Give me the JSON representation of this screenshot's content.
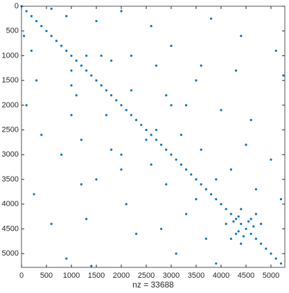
{
  "chart_data": {
    "type": "spy",
    "xlabel": "nz = 33688",
    "color": "#0072bd",
    "xlim": [
      0,
      5278
    ],
    "ylim": [
      0,
      5278
    ],
    "y_reversed": true,
    "xticks": [
      0,
      500,
      1000,
      1500,
      2000,
      2500,
      3000,
      3500,
      4000,
      4500,
      5000
    ],
    "yticks": [
      0,
      500,
      1000,
      1500,
      2000,
      2500,
      3000,
      3500,
      4000,
      4500,
      5000
    ],
    "x": [
      0,
      100,
      200,
      300,
      400,
      500,
      600,
      700,
      800,
      900,
      1000,
      1100,
      1200,
      1300,
      1400,
      1500,
      1600,
      1700,
      1800,
      1900,
      2000,
      2100,
      2200,
      2300,
      2400,
      2500,
      2600,
      2700,
      2800,
      2900,
      3000,
      3100,
      3200,
      3300,
      3400,
      3500,
      3600,
      3700,
      3800,
      3900,
      4000,
      4100,
      4200,
      4300,
      4400,
      4500,
      4600,
      4700,
      4800,
      4900,
      5000,
      5100,
      5200,
      50,
      600,
      200,
      900,
      300,
      1500,
      100,
      2000,
      400,
      2600,
      800,
      3000,
      1000,
      1300,
      1100,
      1800,
      1200,
      2700,
      1300,
      4300,
      1500,
      3500,
      1700,
      2200,
      1800,
      2900,
      2000,
      3300,
      2100,
      4000,
      2300,
      4600,
      2500,
      2700,
      2600,
      3200,
      2800,
      4500,
      2900,
      3600,
      3100,
      5000,
      3300,
      4200,
      3500,
      3900,
      3700,
      4700,
      3900,
      5200,
      4100,
      4400,
      4200,
      4700,
      4300,
      4600,
      4400,
      4800,
      4250,
      4350,
      4350,
      4550,
      4450,
      4650,
      600,
      4400,
      900,
      5100,
      250,
      3800,
      1000,
      1600,
      1400,
      5250,
      1000,
      2200,
      2000,
      3000,
      1200,
      3600
    ],
    "y": [
      0,
      100,
      200,
      300,
      400,
      500,
      600,
      700,
      800,
      900,
      1000,
      1100,
      1200,
      1300,
      1400,
      1500,
      1600,
      1700,
      1800,
      1900,
      2000,
      2100,
      2200,
      2300,
      2400,
      2500,
      2600,
      2700,
      2800,
      2900,
      3000,
      3100,
      3200,
      3300,
      3400,
      3500,
      3600,
      3700,
      3800,
      3900,
      4000,
      4100,
      4200,
      4300,
      4400,
      4500,
      4600,
      4700,
      4800,
      4900,
      5000,
      5100,
      5200,
      600,
      50,
      900,
      200,
      1500,
      300,
      2000,
      100,
      2600,
      400,
      3000,
      800,
      1300,
      1000,
      1800,
      1100,
      2700,
      1200,
      4300,
      1300,
      3500,
      1500,
      2200,
      1700,
      2900,
      1800,
      3300,
      2000,
      4000,
      2100,
      4600,
      2300,
      2700,
      2500,
      3200,
      2600,
      4500,
      2800,
      3600,
      2900,
      5000,
      3100,
      4200,
      3300,
      3900,
      3500,
      4700,
      3700,
      5200,
      3900,
      4400,
      4100,
      4700,
      4200,
      4600,
      4300,
      4800,
      4400,
      4350,
      4250,
      4550,
      4350,
      4650,
      4450,
      4400,
      600,
      5100,
      900,
      3800,
      250,
      1600,
      1000,
      5250,
      1400,
      2200,
      1000,
      3000,
      2000,
      3600,
      1200
    ]
  }
}
